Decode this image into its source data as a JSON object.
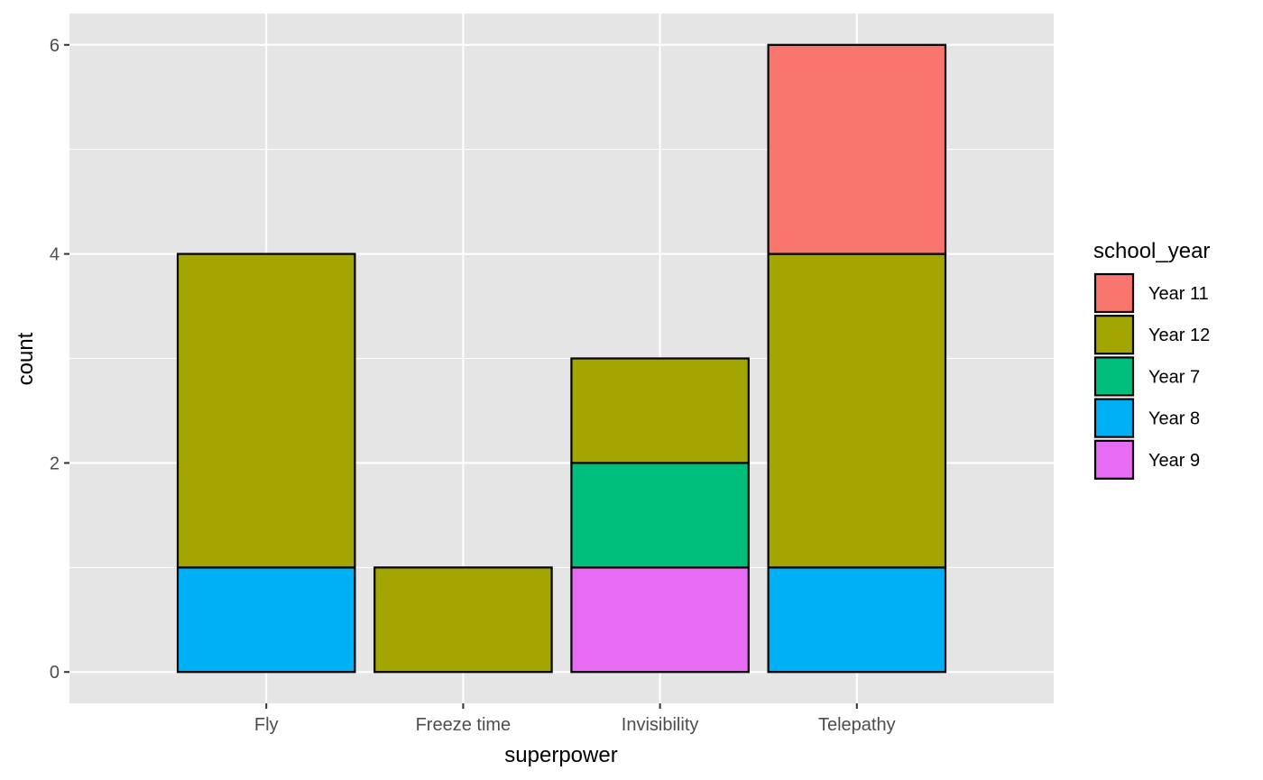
{
  "chart_data": {
    "type": "bar",
    "stacked": true,
    "xlabel": "superpower",
    "ylabel": "count",
    "categories": [
      "Fly",
      "Freeze time",
      "Invisibility",
      "Telepathy"
    ],
    "ylim": [
      -0.3,
      6.3
    ],
    "yticks": [
      0,
      2,
      4,
      6
    ],
    "grid": true,
    "legend": {
      "title": "school_year",
      "placement": "right"
    },
    "stack_order": [
      "Year 9",
      "Year 8",
      "Year 7",
      "Year 12",
      "Year 11"
    ],
    "series": [
      {
        "name": "Year 11",
        "color": "#F8766D",
        "values": [
          0,
          0,
          0,
          2
        ]
      },
      {
        "name": "Year 12",
        "color": "#A3A500",
        "values": [
          3,
          1,
          1,
          3
        ]
      },
      {
        "name": "Year 7",
        "color": "#00BF7D",
        "values": [
          0,
          0,
          1,
          0
        ]
      },
      {
        "name": "Year 8",
        "color": "#00B0F6",
        "values": [
          1,
          0,
          0,
          1
        ]
      },
      {
        "name": "Year 9",
        "color": "#E76BF3",
        "values": [
          0,
          0,
          1,
          0
        ]
      }
    ]
  },
  "colors": {
    "panel_background": "#E5E5E5",
    "grid": "#FFFFFF",
    "bar_outline": "#000000"
  }
}
